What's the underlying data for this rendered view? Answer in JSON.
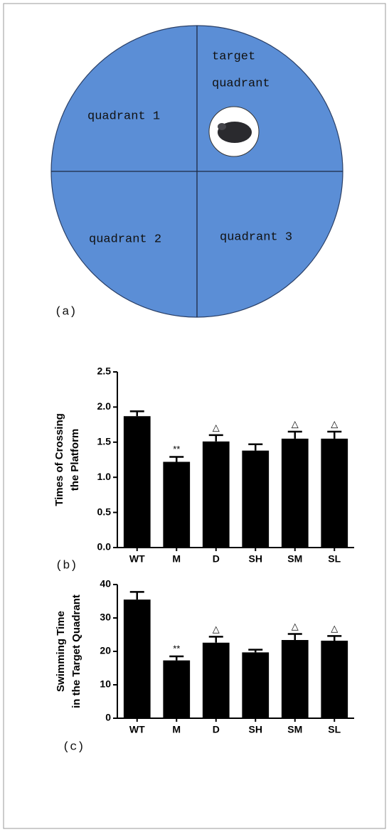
{
  "diagram": {
    "labels": {
      "target": [
        "target",
        "quadrant"
      ],
      "q1": "quadrant 1",
      "q2": "quadrant 2",
      "q3": "quadrant 3"
    },
    "panel": "(a)"
  },
  "chart_data": [
    {
      "type": "bar",
      "panel": "(b)",
      "ylabel": [
        "Times of Crossing",
        "the Platform"
      ],
      "categories": [
        "WT",
        "M",
        "D",
        "SH",
        "SM",
        "SL"
      ],
      "values": [
        1.87,
        1.22,
        1.51,
        1.38,
        1.55,
        1.55
      ],
      "errors": [
        0.07,
        0.07,
        0.09,
        0.09,
        0.1,
        0.1
      ],
      "annotations": [
        null,
        "**",
        "△",
        null,
        "△",
        "△"
      ],
      "color": "#000000",
      "ylim": [
        0,
        2.5
      ],
      "yticks": [
        {
          "value": 0,
          "label": "0.0"
        },
        0.5,
        {
          "value": 1,
          "label": "1.0"
        },
        1.5,
        {
          "value": 2,
          "label": "2.0"
        },
        2.5
      ]
    },
    {
      "type": "bar",
      "panel": "(c)",
      "ylabel": [
        "Swimming Time",
        "in the Target Quadrant"
      ],
      "categories": [
        "WT",
        "M",
        "D",
        "SH",
        "SM",
        "SL"
      ],
      "values": [
        35.5,
        17.3,
        22.6,
        19.7,
        23.4,
        23.2
      ],
      "errors": [
        2.3,
        1.2,
        1.8,
        0.8,
        1.8,
        1.4
      ],
      "annotations": [
        null,
        "**",
        "△",
        null,
        "△",
        "△"
      ],
      "color": "#000000",
      "ylim": [
        0,
        40
      ],
      "yticks": [
        0,
        10,
        20,
        30,
        40
      ]
    }
  ]
}
